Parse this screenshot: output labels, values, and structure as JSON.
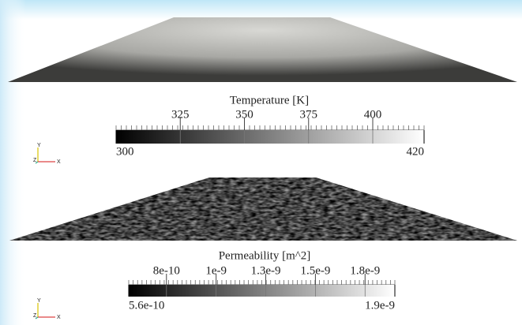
{
  "panels": [
    {
      "colorbar": {
        "title": "Temperature [K]",
        "range": [
          300,
          420
        ],
        "ticks": [
          325,
          350,
          375,
          400
        ]
      },
      "axes_triad": {
        "labels": [
          "Y",
          "Z",
          "X"
        ]
      }
    },
    {
      "colorbar": {
        "title": "Permeability [m^2]",
        "range": [
          5.6e-10,
          1.9e-09
        ],
        "ticks": [
          {
            "value": 7.5e-10,
            "label": "8e-10"
          },
          {
            "value": 1e-09,
            "label": "1e-9"
          },
          {
            "value": 1.25e-09,
            "label": "1.3e-9"
          },
          {
            "value": 1.5e-09,
            "label": "1.5e-9"
          },
          {
            "value": 1.75e-09,
            "label": "1.8e-9"
          }
        ]
      },
      "axes_triad": {
        "labels": [
          "Y",
          "Z",
          "X"
        ]
      }
    }
  ]
}
